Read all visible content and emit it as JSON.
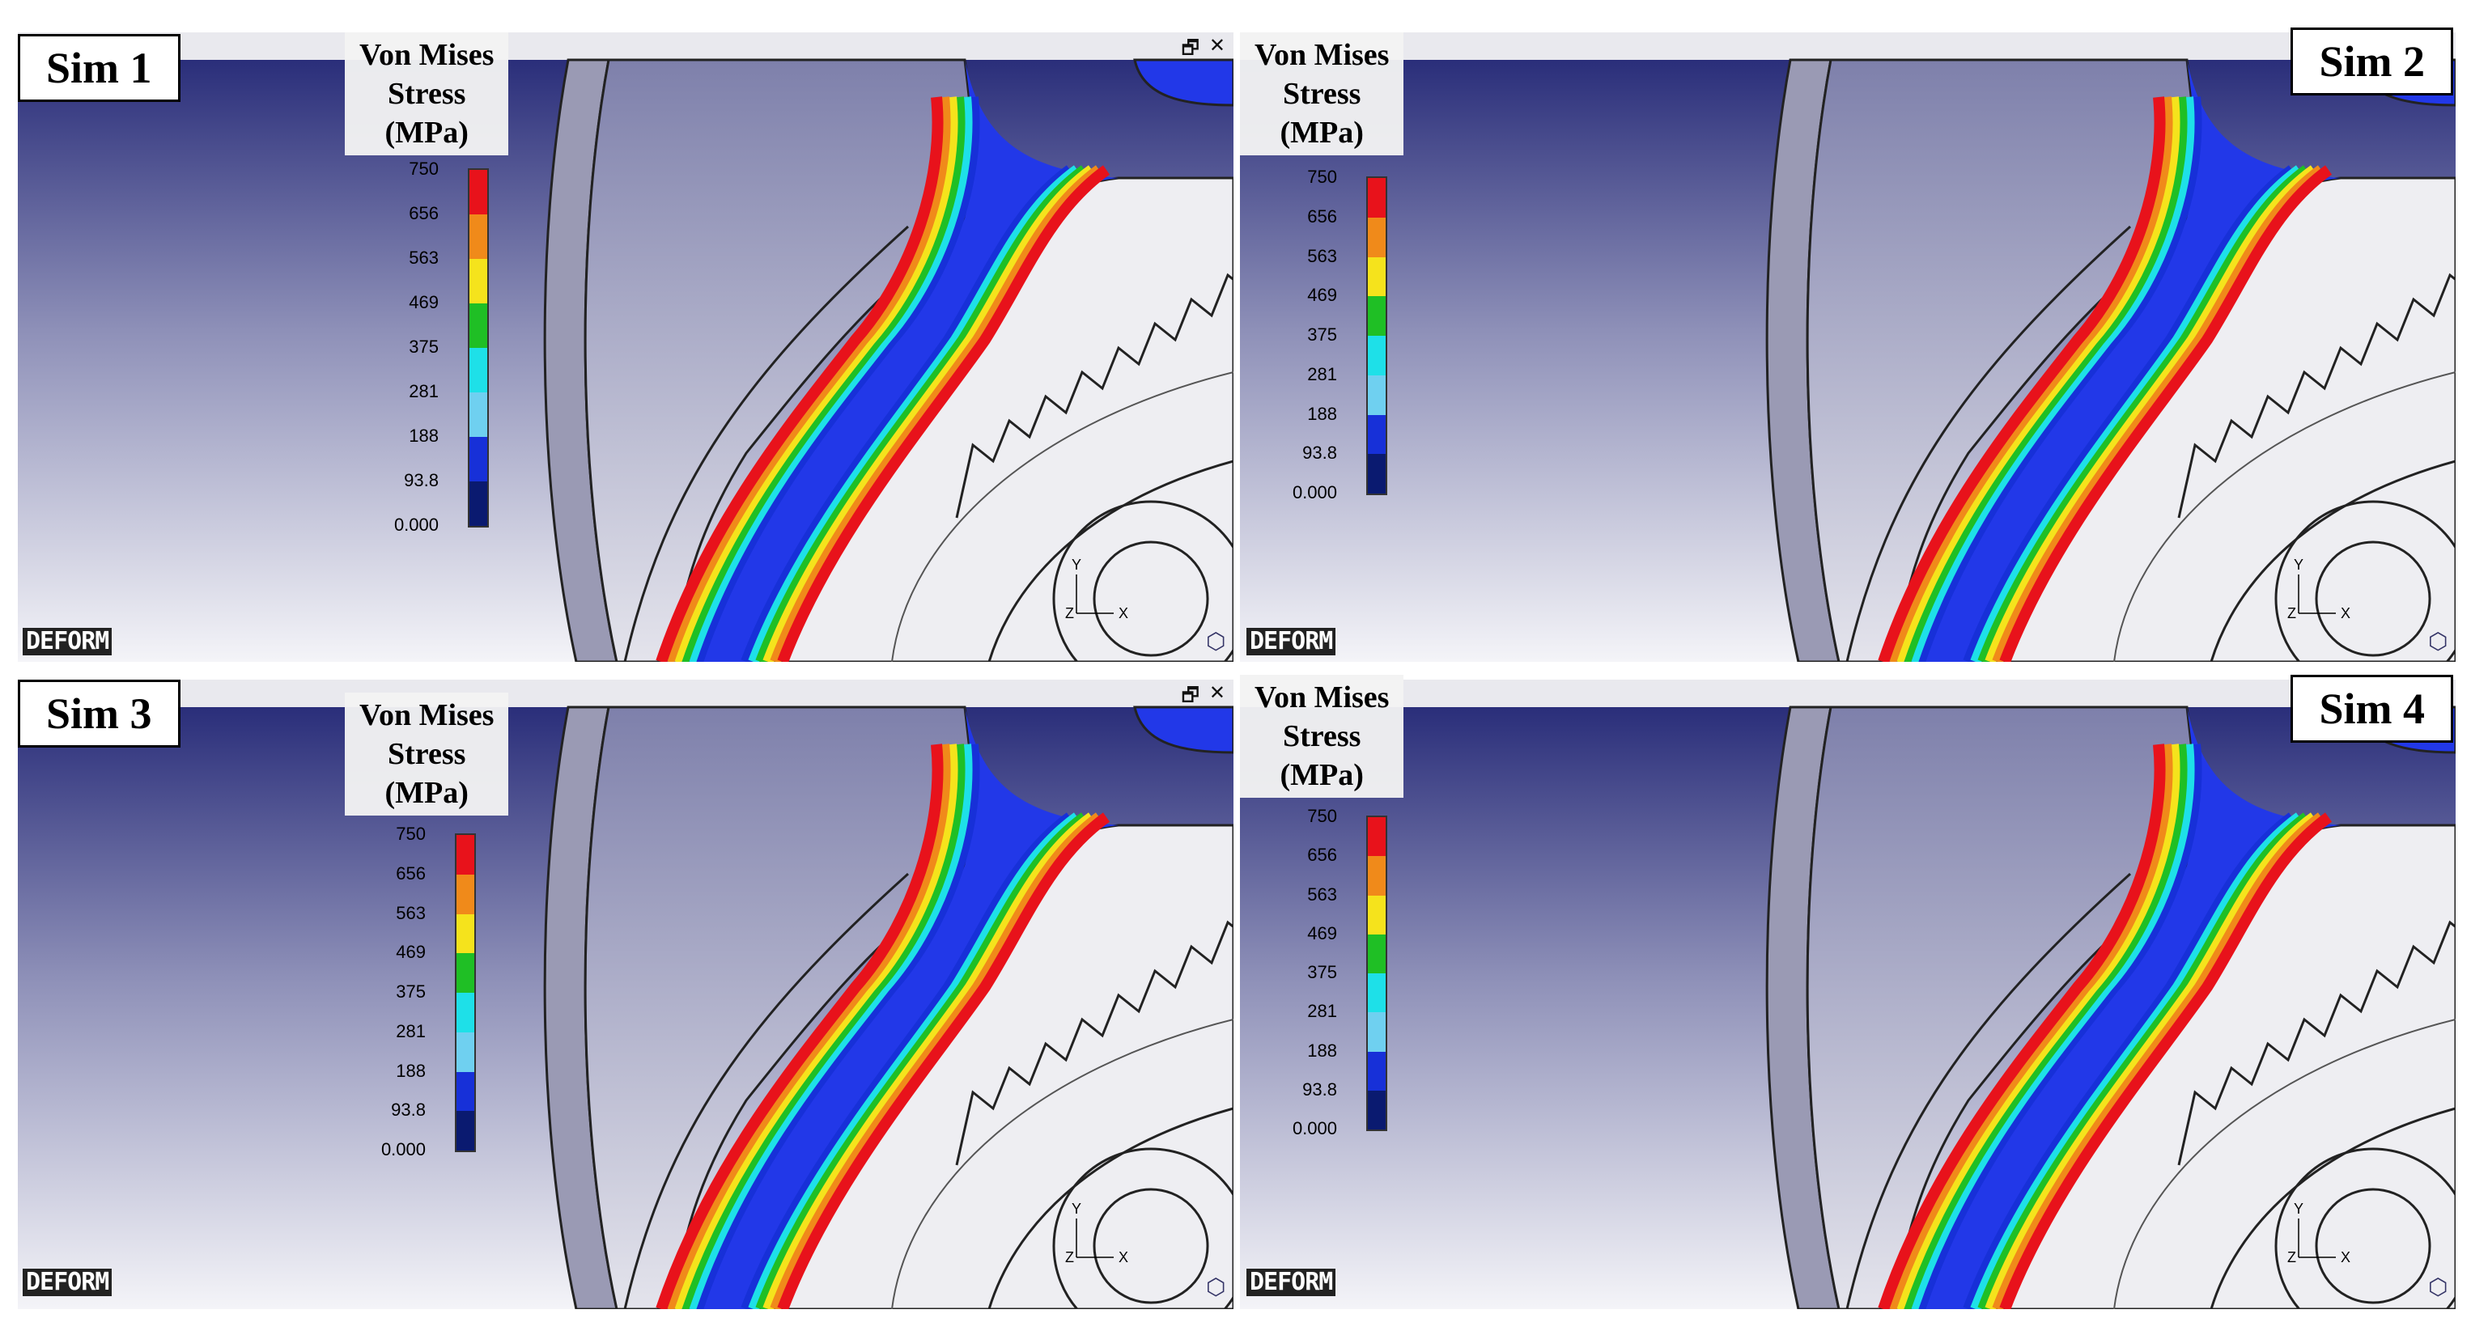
{
  "panels": [
    {
      "id": "sim1",
      "label": "Sim 1",
      "label_side": "left",
      "legend_side": "left"
    },
    {
      "id": "sim2",
      "label": "Sim 2",
      "label_side": "right",
      "legend_side": "left"
    },
    {
      "id": "sim3",
      "label": "Sim 3",
      "label_side": "left",
      "legend_side": "left"
    },
    {
      "id": "sim4",
      "label": "Sim 4",
      "label_side": "right",
      "legend_side": "left"
    }
  ],
  "legend": {
    "title_line1": "Von Mises",
    "title_line2": "Stress",
    "title_line3": "(MPa)",
    "ticks": [
      "750",
      "656",
      "563",
      "469",
      "375",
      "281",
      "188",
      "93.8",
      "0.000"
    ],
    "colors": [
      "#e8121b",
      "#f08a1a",
      "#f5e31c",
      "#1fbf25",
      "#1ee0e8",
      "#6fd0f0",
      "#1730d8",
      "#0a1a70"
    ]
  },
  "window_controls": {
    "restore": "🗗",
    "close": "✕"
  },
  "logo": {
    "text": "DEFORM"
  },
  "axes": {
    "y": "Y",
    "x": "X",
    "z": "Z"
  }
}
